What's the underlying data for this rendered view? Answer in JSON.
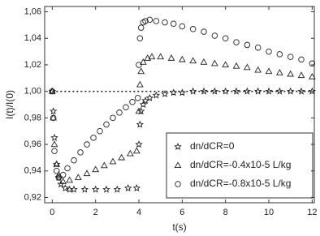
{
  "chart_data": {
    "type": "scatter",
    "x_label": "t(s)",
    "y_label": "I(t)/I(0)",
    "xlim": [
      -0.35,
      12.1
    ],
    "ylim": [
      0.916,
      1.064
    ],
    "xticks": [
      0,
      2,
      4,
      6,
      8,
      10,
      12
    ],
    "yticks": [
      {
        "value": 0.92,
        "label": "0,92"
      },
      {
        "value": 0.94,
        "label": "0,94"
      },
      {
        "value": 0.96,
        "label": "0,96"
      },
      {
        "value": 0.98,
        "label": "0,98"
      },
      {
        "value": 1.0,
        "label": "1,00"
      },
      {
        "value": 1.02,
        "label": "1,02"
      },
      {
        "value": 1.04,
        "label": "1,04"
      },
      {
        "value": 1.06,
        "label": "1,06"
      }
    ],
    "hline": 1.0,
    "legend": "lower right",
    "series": [
      {
        "name": "dn/dCR=0",
        "color": "#222222",
        "marker": "star",
        "x": [
          0,
          0.05,
          0.1,
          0.2,
          0.3,
          0.4,
          0.6,
          0.8,
          1,
          1.5,
          2,
          2.5,
          3,
          3.5,
          3.9,
          4.0,
          4.05,
          4.1,
          4.2,
          4.3,
          4.5,
          4.8,
          5.2,
          5.6,
          6,
          6.5,
          7,
          7.5,
          8,
          8.5,
          9,
          9.5,
          10,
          10.5,
          11,
          11.5,
          12
        ],
        "values": [
          1.0,
          0.985,
          0.965,
          0.945,
          0.935,
          0.93,
          0.927,
          0.926,
          0.926,
          0.926,
          0.926,
          0.926,
          0.926,
          0.927,
          0.927,
          0.96,
          0.975,
          0.985,
          0.99,
          0.993,
          0.995,
          0.997,
          0.998,
          0.999,
          0.999,
          1.0,
          1.0,
          1.0,
          1.0,
          1.0,
          1.0,
          1.0,
          1.0,
          1.0,
          1.0,
          1.0,
          1.0
        ]
      },
      {
        "name": "dn/dCR=-0.4x10-5 L/kg",
        "color": "#222222",
        "marker": "triangle",
        "x": [
          0,
          0.05,
          0.1,
          0.2,
          0.3,
          0.5,
          0.8,
          1.2,
          1.6,
          2.0,
          2.4,
          2.8,
          3.2,
          3.6,
          3.9,
          4.0,
          4.05,
          4.1,
          4.2,
          4.4,
          4.6,
          5.0,
          5.5,
          6,
          6.5,
          7,
          7.5,
          8,
          8.5,
          9,
          9.5,
          10,
          10.5,
          11,
          11.5,
          12
        ],
        "values": [
          1.0,
          0.98,
          0.96,
          0.945,
          0.937,
          0.932,
          0.933,
          0.935,
          0.938,
          0.941,
          0.944,
          0.947,
          0.95,
          0.953,
          0.955,
          0.985,
          1.005,
          1.015,
          1.022,
          1.025,
          1.026,
          1.026,
          1.025,
          1.024,
          1.023,
          1.022,
          1.021,
          1.02,
          1.019,
          1.018,
          1.016,
          1.015,
          1.014,
          1.013,
          1.012,
          1.011
        ]
      },
      {
        "name": "dn/dCR=-0.8x10-5 L/kg",
        "color": "#222222",
        "marker": "circle",
        "x": [
          0,
          0.05,
          0.1,
          0.2,
          0.3,
          0.5,
          0.7,
          1.0,
          1.3,
          1.6,
          1.9,
          2.2,
          2.5,
          2.8,
          3.1,
          3.4,
          3.7,
          3.95,
          4.0,
          4.05,
          4.1,
          4.2,
          4.3,
          4.5,
          4.8,
          5.2,
          5.6,
          6,
          6.5,
          7,
          7.5,
          8,
          8.5,
          9,
          9.5,
          10,
          10.5,
          11,
          11.5,
          12
        ],
        "values": [
          1.0,
          0.98,
          0.955,
          0.94,
          0.935,
          0.937,
          0.942,
          0.948,
          0.954,
          0.96,
          0.965,
          0.97,
          0.975,
          0.98,
          0.984,
          0.988,
          0.992,
          0.995,
          1.02,
          1.04,
          1.048,
          1.052,
          1.053,
          1.054,
          1.053,
          1.052,
          1.051,
          1.049,
          1.047,
          1.045,
          1.042,
          1.04,
          1.037,
          1.035,
          1.033,
          1.03,
          1.028,
          1.026,
          1.024,
          1.021
        ]
      }
    ]
  }
}
